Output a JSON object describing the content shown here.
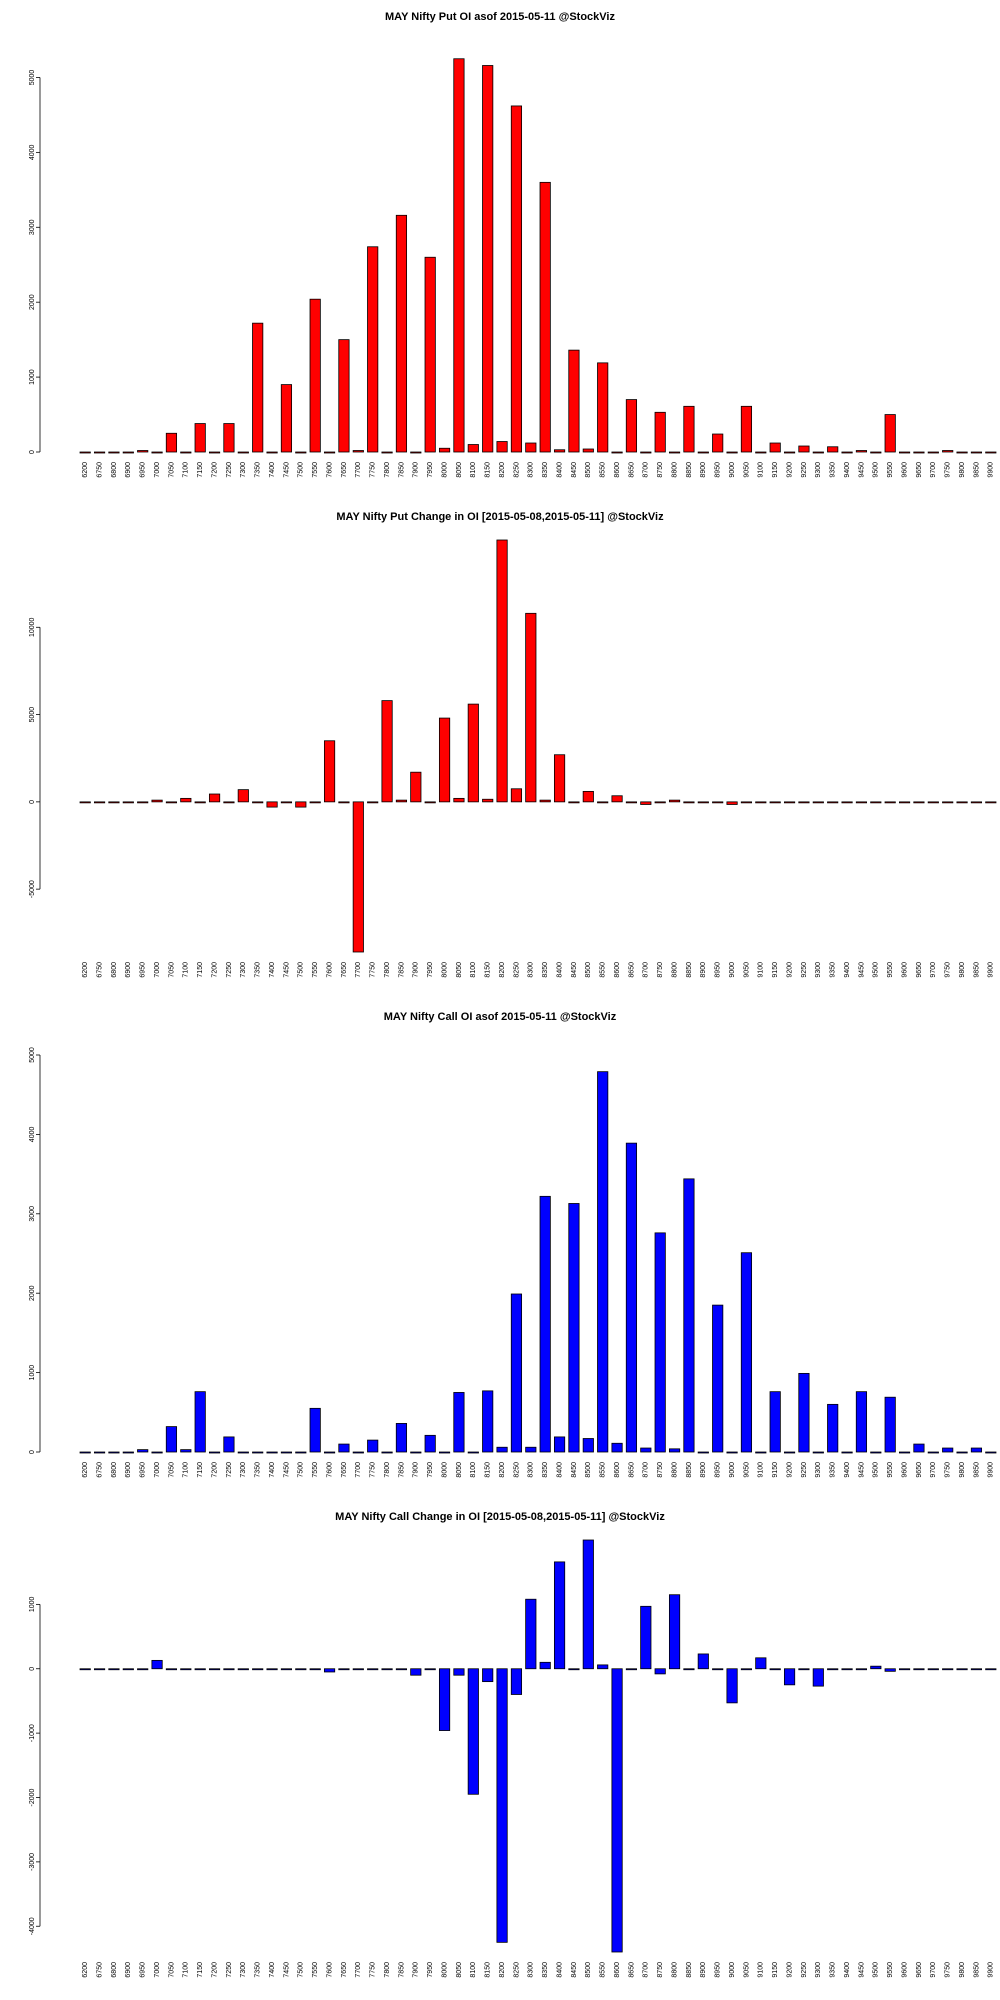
{
  "chart_data": [
    {
      "type": "bar",
      "title": "MAY Nifty Put OI asof 2015-05-11 @StockViz",
      "color": "#ff0000",
      "ylim": [
        0,
        5300
      ],
      "yticks": [
        0,
        1000,
        2000,
        3000,
        4000,
        5000
      ],
      "categories": [
        "6200",
        "6750",
        "6800",
        "6900",
        "6950",
        "7000",
        "7050",
        "7100",
        "7150",
        "7200",
        "7250",
        "7300",
        "7350",
        "7400",
        "7450",
        "7500",
        "7550",
        "7600",
        "7650",
        "7700",
        "7750",
        "7800",
        "7850",
        "7900",
        "7950",
        "8000",
        "8050",
        "8100",
        "8150",
        "8200",
        "8250",
        "8300",
        "8350",
        "8400",
        "8450",
        "8500",
        "8550",
        "8600",
        "8650",
        "8700",
        "8750",
        "8800",
        "8850",
        "8900",
        "8950",
        "9000",
        "9050",
        "9100",
        "9150",
        "9200",
        "9250",
        "9300",
        "9350",
        "9400",
        "9450",
        "9500",
        "9550",
        "9600",
        "9650",
        "9700",
        "9750",
        "9800",
        "9850",
        "9900"
      ],
      "values": [
        0,
        0,
        0,
        0,
        20,
        0,
        250,
        0,
        380,
        0,
        380,
        0,
        1720,
        0,
        900,
        0,
        2040,
        0,
        1500,
        20,
        2740,
        0,
        3160,
        0,
        2600,
        50,
        5250,
        100,
        5160,
        140,
        4620,
        120,
        3600,
        30,
        1360,
        40,
        1190,
        0,
        700,
        0,
        530,
        0,
        610,
        0,
        240,
        0,
        610,
        0,
        120,
        0,
        80,
        0,
        70,
        0,
        20,
        0,
        500,
        0,
        0,
        0,
        20,
        0,
        0,
        0
      ]
    },
    {
      "type": "bar",
      "title": "MAY Nifty Put Change in OI [2015-05-08,2015-05-11] @StockViz",
      "color": "#ff0000",
      "ylim": [
        -8600,
        15000
      ],
      "yticks": [
        -5000,
        0,
        5000,
        10000
      ],
      "categories": [
        "6200",
        "6750",
        "6800",
        "6900",
        "6950",
        "7000",
        "7050",
        "7100",
        "7150",
        "7200",
        "7250",
        "7300",
        "7350",
        "7400",
        "7450",
        "7500",
        "7550",
        "7600",
        "7650",
        "7700",
        "7750",
        "7800",
        "7850",
        "7900",
        "7950",
        "8000",
        "8050",
        "8100",
        "8150",
        "8200",
        "8250",
        "8300",
        "8350",
        "8400",
        "8450",
        "8500",
        "8550",
        "8600",
        "8650",
        "8700",
        "8750",
        "8800",
        "8850",
        "8900",
        "8950",
        "9000",
        "9050",
        "9100",
        "9150",
        "9200",
        "9250",
        "9300",
        "9350",
        "9400",
        "9450",
        "9500",
        "9550",
        "9600",
        "9650",
        "9700",
        "9750",
        "9800",
        "9850",
        "9900"
      ],
      "values": [
        0,
        0,
        0,
        0,
        0,
        100,
        0,
        200,
        0,
        450,
        0,
        700,
        0,
        -300,
        0,
        -300,
        0,
        3500,
        0,
        -8600,
        0,
        5800,
        100,
        1700,
        0,
        4800,
        200,
        5600,
        150,
        15000,
        750,
        10800,
        100,
        2700,
        0,
        600,
        0,
        350,
        0,
        -150,
        0,
        100,
        0,
        0,
        0,
        -150,
        0,
        0,
        0,
        0,
        0,
        0,
        0,
        0,
        0,
        0,
        0,
        0,
        0,
        0,
        0,
        0,
        0,
        0
      ]
    },
    {
      "type": "bar",
      "title": "MAY Nifty Call OI asof 2015-05-11 @StockViz",
      "color": "#0000ff",
      "ylim": [
        0,
        5000
      ],
      "yticks": [
        0,
        1000,
        2000,
        3000,
        4000,
        5000
      ],
      "categories": [
        "6200",
        "6750",
        "6800",
        "6900",
        "6950",
        "7000",
        "7050",
        "7100",
        "7150",
        "7200",
        "7250",
        "7300",
        "7350",
        "7400",
        "7450",
        "7500",
        "7550",
        "7600",
        "7650",
        "7700",
        "7750",
        "7800",
        "7850",
        "7900",
        "7950",
        "8000",
        "8050",
        "8100",
        "8150",
        "8200",
        "8250",
        "8300",
        "8350",
        "8400",
        "8450",
        "8500",
        "8550",
        "8600",
        "8650",
        "8700",
        "8750",
        "8800",
        "8850",
        "8900",
        "8950",
        "9000",
        "9050",
        "9100",
        "9150",
        "9200",
        "9250",
        "9300",
        "9350",
        "9400",
        "9450",
        "9500",
        "9550",
        "9600",
        "9650",
        "9700",
        "9750",
        "9800",
        "9850",
        "9900"
      ],
      "values": [
        0,
        0,
        0,
        0,
        30,
        0,
        320,
        30,
        760,
        0,
        190,
        0,
        0,
        0,
        0,
        0,
        550,
        0,
        100,
        0,
        150,
        0,
        360,
        0,
        210,
        0,
        750,
        0,
        770,
        60,
        1990,
        60,
        3220,
        190,
        3130,
        170,
        4790,
        110,
        3890,
        50,
        2760,
        40,
        3440,
        0,
        1850,
        0,
        2510,
        0,
        760,
        0,
        990,
        0,
        600,
        0,
        760,
        0,
        690,
        0,
        100,
        0,
        50,
        0,
        50,
        0
      ]
    },
    {
      "type": "bar",
      "title": "MAY Nifty Call Change in OI [2015-05-08,2015-05-11] @StockViz",
      "color": "#0000ff",
      "ylim": [
        -4400,
        2000
      ],
      "yticks": [
        -4000,
        -3000,
        -2000,
        -1000,
        0,
        1000
      ],
      "categories": [
        "6200",
        "6750",
        "6800",
        "6900",
        "6950",
        "7000",
        "7050",
        "7100",
        "7150",
        "7200",
        "7250",
        "7300",
        "7350",
        "7400",
        "7450",
        "7500",
        "7550",
        "7600",
        "7650",
        "7700",
        "7750",
        "7800",
        "7850",
        "7900",
        "7950",
        "8000",
        "8050",
        "8100",
        "8150",
        "8200",
        "8250",
        "8300",
        "8350",
        "8400",
        "8450",
        "8500",
        "8550",
        "8600",
        "8650",
        "8700",
        "8750",
        "8800",
        "8850",
        "8900",
        "8950",
        "9000",
        "9050",
        "9100",
        "9150",
        "9200",
        "9250",
        "9300",
        "9350",
        "9400",
        "9450",
        "9500",
        "9550",
        "9600",
        "9650",
        "9700",
        "9750",
        "9800",
        "9850",
        "9900"
      ],
      "values": [
        0,
        0,
        0,
        0,
        0,
        130,
        0,
        0,
        0,
        0,
        0,
        0,
        0,
        0,
        0,
        0,
        0,
        -50,
        0,
        0,
        0,
        0,
        0,
        -100,
        0,
        -960,
        -100,
        -1950,
        -200,
        -4250,
        -400,
        1080,
        100,
        1660,
        0,
        2000,
        60,
        -4400,
        0,
        970,
        -80,
        1150,
        0,
        230,
        0,
        -530,
        0,
        170,
        0,
        -250,
        0,
        -270,
        0,
        0,
        0,
        40,
        -40,
        0,
        0,
        0,
        0,
        0,
        0,
        0
      ]
    }
  ]
}
